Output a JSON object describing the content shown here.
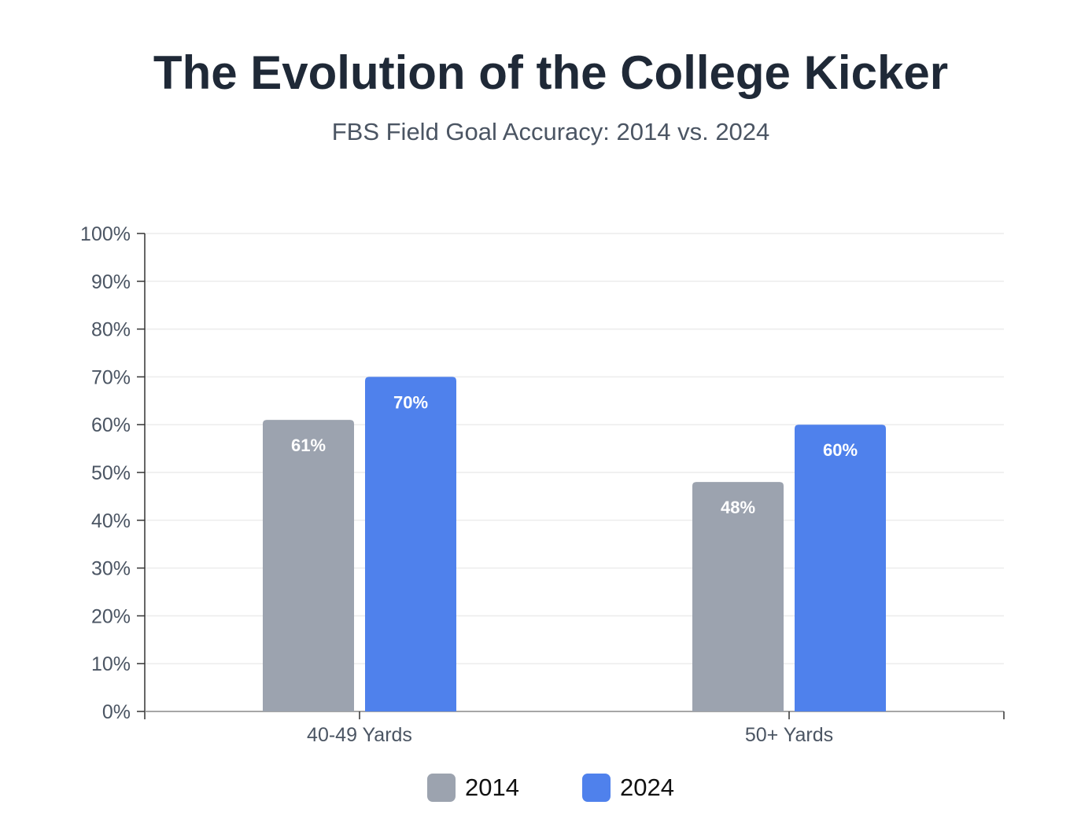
{
  "chart_data": {
    "type": "bar",
    "title": "The Evolution of the College Kicker",
    "subtitle": "FBS Field Goal Accuracy: 2014 vs. 2024",
    "categories": [
      "40-49 Yards",
      "50+ Yards"
    ],
    "series": [
      {
        "name": "2014",
        "values": [
          61,
          48
        ],
        "labels": [
          "61%",
          "48%"
        ],
        "color": "#9ca3af"
      },
      {
        "name": "2024",
        "values": [
          70,
          60
        ],
        "labels": [
          "70%",
          "60%"
        ],
        "color": "#4f81ec"
      }
    ],
    "ylim": [
      0,
      100
    ],
    "yticks": [
      "0%",
      "10%",
      "20%",
      "30%",
      "40%",
      "50%",
      "60%",
      "70%",
      "80%",
      "90%",
      "100%"
    ],
    "xlabel": "",
    "ylabel": "",
    "grid": true,
    "legend": "bottom-center"
  }
}
